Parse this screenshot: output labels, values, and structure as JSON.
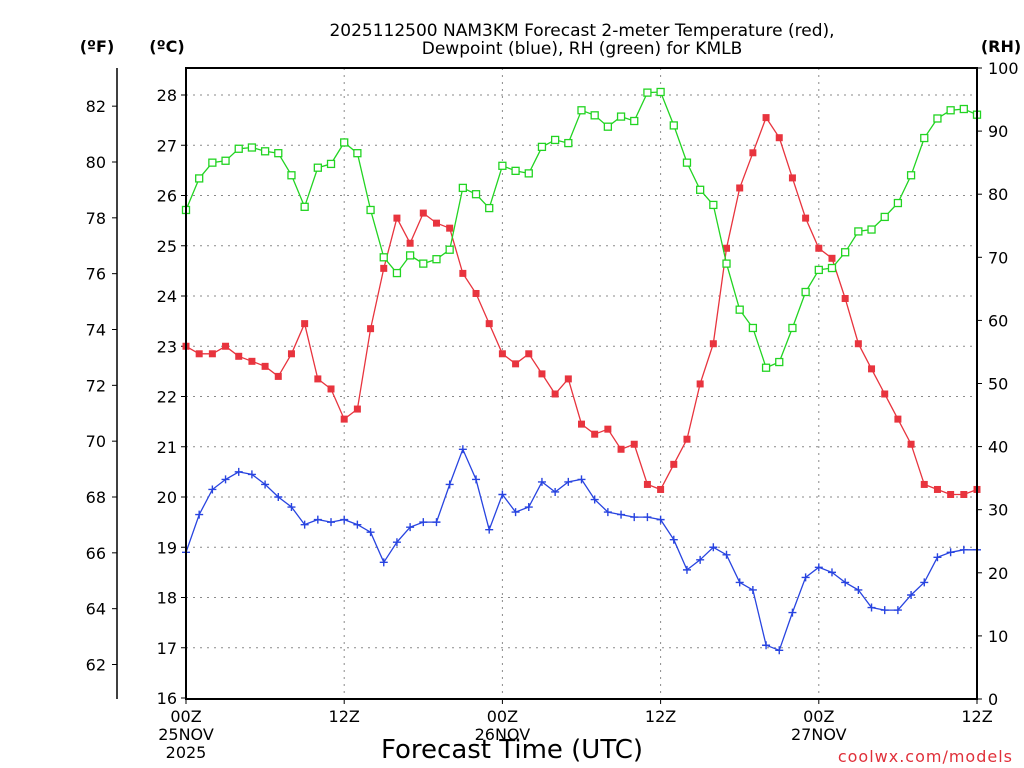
{
  "chart_data": {
    "type": "line",
    "title": "2025112500 NAM3KM Forecast 2-meter Temperature (red),",
    "subtitle": "Dewpoint (blue), RH (green) for KMLB",
    "left_outer_unit": "(ºF)",
    "left_unit": "(ºC)",
    "right_unit": "(RH)",
    "xlabel": "Forecast Time (UTC)",
    "credit": "coolwx.com/models",
    "x_ticks": [
      {
        "hour": 0,
        "line1": "00Z",
        "line2": "25NOV",
        "line3": "2025"
      },
      {
        "hour": 12,
        "line1": "12Z",
        "line2": "",
        "line3": ""
      },
      {
        "hour": 24,
        "line1": "00Z",
        "line2": "26NOV",
        "line3": ""
      },
      {
        "hour": 36,
        "line1": "12Z",
        "line2": "",
        "line3": ""
      },
      {
        "hour": 48,
        "line1": "00Z",
        "line2": "27NOV",
        "line3": ""
      },
      {
        "hour": 60,
        "line1": "12Z",
        "line2": "",
        "line3": ""
      }
    ],
    "xlim": [
      0,
      60
    ],
    "ylim_c": [
      16,
      28.2
    ],
    "yticks_c": [
      "16",
      "17",
      "18",
      "19",
      "20",
      "21",
      "22",
      "23",
      "24",
      "25",
      "26",
      "27",
      "28"
    ],
    "yticks_f": [
      "62",
      "64",
      "66",
      "68",
      "70",
      "72",
      "74",
      "76",
      "78",
      "80",
      "82"
    ],
    "ylim_rh": [
      0,
      100
    ],
    "yticks_rh": [
      "0",
      "10",
      "20",
      "30",
      "40",
      "50",
      "60",
      "70",
      "80",
      "90",
      "100"
    ],
    "grid": true,
    "series": [
      {
        "name": "2-meter Temperature",
        "unit": "C",
        "color": "#e8343e",
        "marker": "filled-square",
        "values": [
          23.0,
          22.85,
          22.85,
          23.0,
          22.8,
          22.7,
          22.6,
          22.4,
          22.85,
          23.45,
          22.35,
          22.15,
          21.55,
          21.75,
          23.35,
          24.55,
          25.55,
          25.05,
          25.65,
          25.45,
          25.35,
          24.45,
          24.05,
          23.45,
          22.85,
          22.65,
          22.85,
          22.45,
          22.05,
          22.35,
          21.45,
          21.25,
          21.35,
          20.95,
          21.05,
          20.25,
          20.15,
          20.65,
          21.15,
          22.25,
          23.05,
          24.95,
          26.15,
          26.85,
          27.55,
          27.15,
          26.35,
          25.55,
          24.95,
          24.75,
          23.95,
          23.05,
          22.55,
          22.05,
          21.55,
          21.05,
          20.25,
          20.15,
          20.05,
          20.05,
          20.15
        ]
      },
      {
        "name": "Dewpoint",
        "unit": "C",
        "color": "#2844e0",
        "marker": "plus",
        "values": [
          18.9,
          19.65,
          20.15,
          20.35,
          20.5,
          20.45,
          20.25,
          20.0,
          19.8,
          19.45,
          19.55,
          19.5,
          19.55,
          19.45,
          19.3,
          18.7,
          19.1,
          19.4,
          19.5,
          19.5,
          20.25,
          20.95,
          20.35,
          19.35,
          20.05,
          19.7,
          19.8,
          20.3,
          20.1,
          20.3,
          20.35,
          19.95,
          19.7,
          19.65,
          19.6,
          19.6,
          19.55,
          19.15,
          18.55,
          18.75,
          19.0,
          18.85,
          18.3,
          18.15,
          17.05,
          16.95,
          17.7,
          18.4,
          18.6,
          18.5,
          18.3,
          18.15,
          17.8,
          17.75,
          17.75,
          18.05,
          18.3,
          18.8,
          18.9,
          18.95,
          18.95
        ]
      },
      {
        "name": "RH",
        "unit": "%",
        "color": "#22d422",
        "marker": "open-square",
        "values": [
          77.5,
          82.5,
          85.0,
          85.3,
          87.2,
          87.4,
          86.8,
          86.5,
          83.0,
          78.0,
          84.2,
          84.8,
          88.2,
          86.5,
          77.5,
          70.0,
          67.5,
          70.3,
          69.0,
          69.7,
          71.2,
          81.0,
          80.0,
          77.8,
          84.5,
          83.7,
          83.3,
          87.5,
          88.6,
          88.1,
          93.3,
          92.5,
          90.7,
          92.3,
          91.6,
          96.1,
          96.2,
          90.9,
          85.0,
          80.7,
          78.3,
          69.0,
          61.7,
          58.8,
          52.5,
          53.4,
          58.8,
          64.5,
          68.0,
          68.3,
          70.8,
          74.1,
          74.4,
          76.4,
          78.6,
          83.0,
          88.9,
          92.0,
          93.3,
          93.5,
          92.6
        ]
      }
    ]
  }
}
